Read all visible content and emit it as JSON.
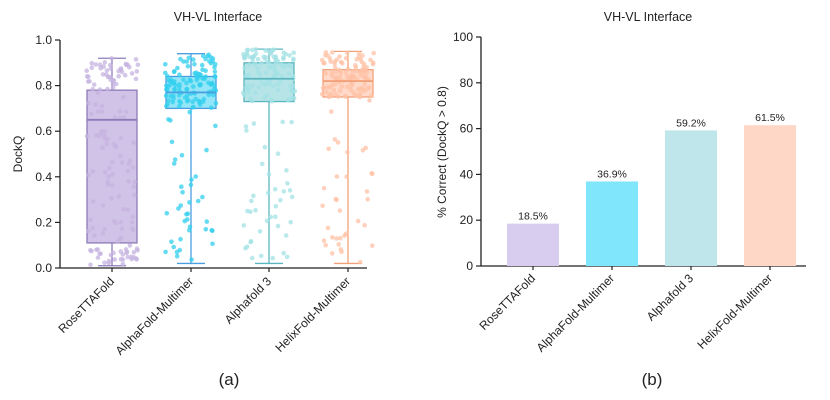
{
  "chart_data": [
    {
      "type": "box",
      "title": "VH-VL Interface",
      "ylabel": "DockQ",
      "xlabel": "",
      "panel_label": "(a)",
      "ylim": [
        0,
        1.0
      ],
      "yticks": [
        "0.0",
        "0.2",
        "0.4",
        "0.6",
        "0.8",
        "1.0"
      ],
      "categories": [
        "RoseTTAFold",
        "AlphaFold-Multimer",
        "Alphafold 3",
        "HelixFold-Multimer"
      ],
      "series": [
        {
          "name": "RoseTTAFold",
          "min": 0.01,
          "q1": 0.11,
          "median": 0.65,
          "q3": 0.78,
          "max": 0.92,
          "color": "#c9b8e3",
          "edge": "#8d7bb8",
          "points_color": "#c5b3e0"
        },
        {
          "name": "AlphaFold-Multimer",
          "min": 0.02,
          "q1": 0.7,
          "median": 0.77,
          "q3": 0.84,
          "max": 0.94,
          "color": "#7fe2f7",
          "edge": "#4a9fe0",
          "points_color": "#32cfee"
        },
        {
          "name": "Alphafold 3",
          "min": 0.02,
          "q1": 0.73,
          "median": 0.83,
          "q3": 0.9,
          "max": 0.96,
          "color": "#a9dfe3",
          "edge": "#5ab7bf",
          "points_color": "#a3e2e6"
        },
        {
          "name": "HelixFold-Multimer",
          "min": 0.02,
          "q1": 0.75,
          "median": 0.82,
          "q3": 0.87,
          "max": 0.95,
          "color": "#ffd2bf",
          "edge": "#f2a27a",
          "points_color": "#ffc1a5"
        }
      ]
    },
    {
      "type": "bar",
      "title": "VH-VL Interface",
      "ylabel": "% Correct (DockQ > 0.8)",
      "xlabel": "",
      "panel_label": "(b)",
      "ylim": [
        0,
        100
      ],
      "yticks": [
        "0",
        "20",
        "40",
        "60",
        "80",
        "100"
      ],
      "categories": [
        "RoseTTAFold",
        "AlphaFold-Multimer",
        "Alphafold 3",
        "HelixFold-Multimer"
      ],
      "values": [
        18.5,
        36.9,
        59.2,
        61.5
      ],
      "labels": [
        "18.5%",
        "36.9%",
        "59.2%",
        "61.5%"
      ],
      "colors": [
        "#d8cdee",
        "#80e6fb",
        "#bfe6ea",
        "#ffd7c6"
      ]
    }
  ]
}
